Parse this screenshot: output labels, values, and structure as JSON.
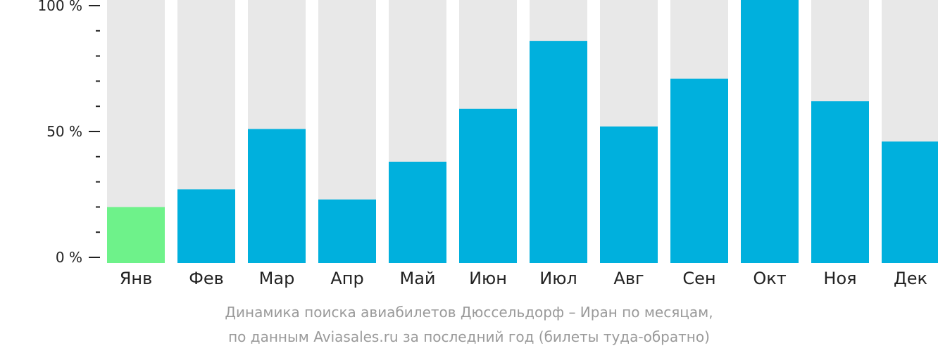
{
  "chart_data": {
    "type": "bar",
    "categories": [
      "Янв",
      "Фев",
      "Мар",
      "Апр",
      "Май",
      "Июн",
      "Июл",
      "Авг",
      "Сен",
      "Окт",
      "Ноя",
      "Дек"
    ],
    "values": [
      20,
      27,
      51,
      23,
      38,
      59,
      86,
      52,
      71,
      100,
      62,
      46
    ],
    "ylim": [
      0,
      100
    ],
    "yticks": [
      {
        "value": 0,
        "label": "0 %"
      },
      {
        "value": 50,
        "label": "50 %"
      },
      {
        "value": 100,
        "label": "100 %"
      }
    ],
    "minor_tick_step": 10,
    "highlight_index": 0,
    "colors": {
      "bar": "#00b0dd",
      "highlight": "#6ef28a",
      "track": "#e8e8e8",
      "axis": "#222222"
    }
  },
  "caption": {
    "line1": "Динамика поиска авиабилетов Дюссельдорф – Иран по месяцам,",
    "line2": "по данным Aviasales.ru за последний год (билеты туда-обратно)"
  }
}
